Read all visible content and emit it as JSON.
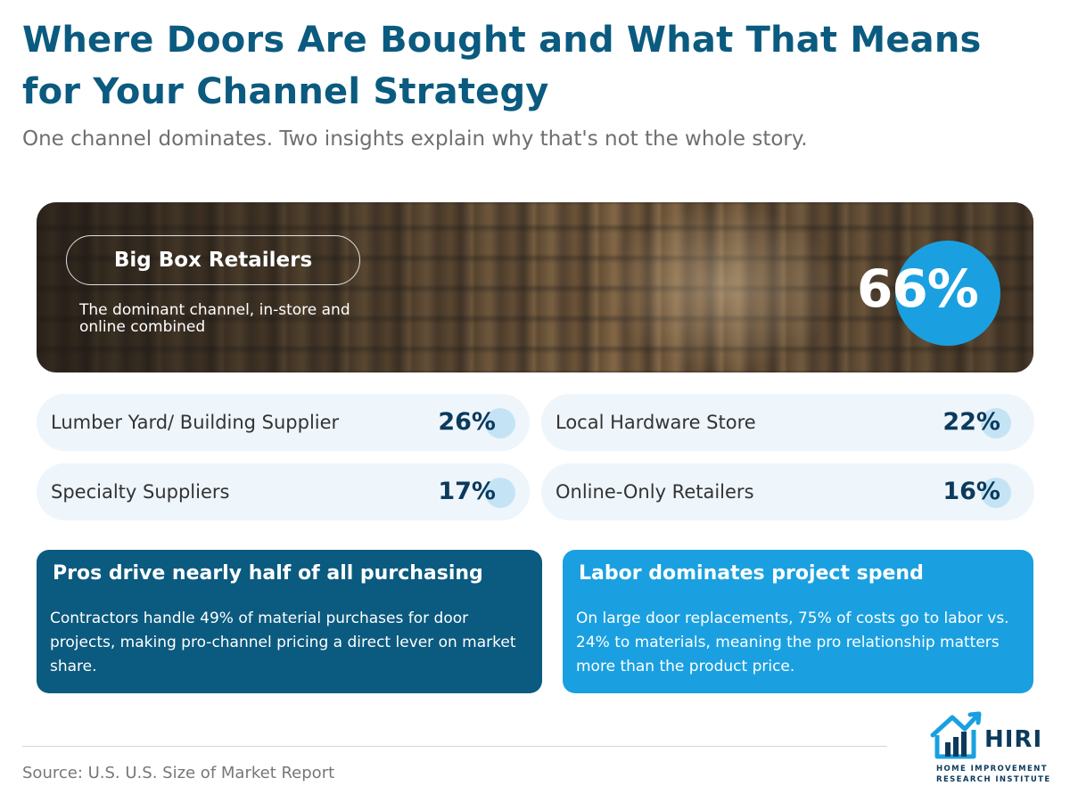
{
  "header": {
    "title": "Where Doors Are Bought and What That Means for Your Channel Strategy",
    "subtitle": "One channel dominates. Two insights explain why that's not the whole story."
  },
  "hero": {
    "label": "Big Box Retailers",
    "description": "The dominant channel, in-store and online combined",
    "value": "66%"
  },
  "channels": [
    {
      "label": "Lumber Yard/ Building Supplier",
      "value": "26%"
    },
    {
      "label": "Local Hardware Store",
      "value": "22%"
    },
    {
      "label": "Specialty Suppliers",
      "value": "17%"
    },
    {
      "label": "Online-Only Retailers",
      "value": "16%"
    }
  ],
  "insights": [
    {
      "heading": "Pros drive nearly half of all purchasing",
      "body": "Contractors handle 49% of material purchases for door projects, making pro-channel pricing a direct lever on market share."
    },
    {
      "heading": "Labor dominates project spend",
      "body": "On large door replacements, 75% of costs go to labor vs. 24% to materials, meaning the pro relationship matters more than the product price."
    }
  ],
  "footer": {
    "source": "Source: U.S. U.S. Size of Market Report"
  },
  "logo": {
    "word": "HIRI",
    "line1": "HOME IMPROVEMENT",
    "line2": "RESEARCH INSTITUTE",
    "icon": "house-chart-icon"
  },
  "colors": {
    "brand_dark": "#0b5a7f",
    "brand_light": "#1aa0e0",
    "navy": "#0b3a5c",
    "stat_bg": "#eef5fb"
  }
}
